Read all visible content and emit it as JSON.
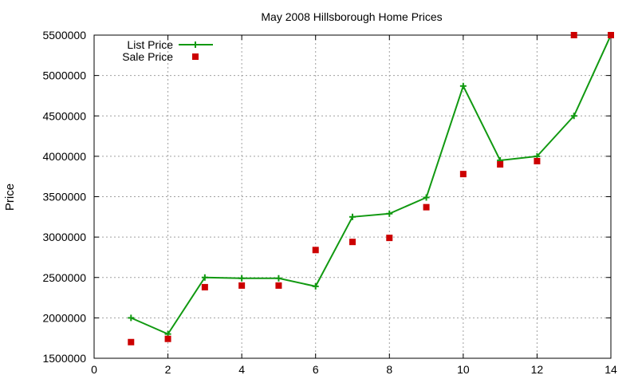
{
  "chart_data": {
    "type": "line",
    "title": "May 2008 Hillsborough Home Prices",
    "xlabel": "",
    "ylabel": "Price",
    "xlim": [
      0,
      14
    ],
    "ylim": [
      1500000,
      5500000
    ],
    "xticks": [
      0,
      2,
      4,
      6,
      8,
      10,
      12,
      14
    ],
    "yticks": [
      1500000,
      2000000,
      2500000,
      3000000,
      3500000,
      4000000,
      4500000,
      5000000,
      5500000
    ],
    "grid": true,
    "legend_position": "top-left",
    "series": [
      {
        "name": "List Price",
        "type": "line",
        "marker": "plus",
        "color": "#119911",
        "x": [
          1,
          2,
          3,
          4,
          5,
          6,
          7,
          8,
          9,
          10,
          11,
          12,
          13,
          14
        ],
        "y": [
          2000000,
          1800000,
          2500000,
          2490000,
          2490000,
          2390000,
          3250000,
          3290000,
          3490000,
          4870000,
          3950000,
          4000000,
          4500000,
          5500000
        ]
      },
      {
        "name": "Sale Price",
        "type": "scatter",
        "marker": "square",
        "color": "#cc0000",
        "x": [
          1,
          2,
          3,
          4,
          5,
          6,
          7,
          8,
          9,
          10,
          11,
          12,
          13,
          14
        ],
        "y": [
          1700000,
          1740000,
          2380000,
          2400000,
          2400000,
          2840000,
          2940000,
          2990000,
          3370000,
          3780000,
          3900000,
          3940000,
          5500000,
          5500000
        ]
      }
    ]
  }
}
